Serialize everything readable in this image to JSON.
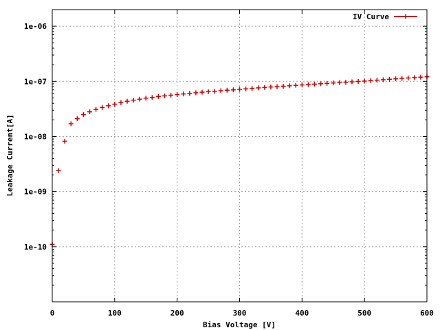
{
  "chart_data": {
    "type": "scatter",
    "xlabel": "Bias Voltage [V]",
    "ylabel": "Leakage Current[A]",
    "xlim": [
      0,
      600
    ],
    "ylim": [
      1e-11,
      2e-06
    ],
    "yscale": "log",
    "grid": true,
    "legend_position": "top-right",
    "x_ticks": [
      0,
      100,
      200,
      300,
      400,
      500,
      600
    ],
    "x_tick_labels": [
      "0",
      "100",
      "200",
      "300",
      "400",
      "500",
      "600"
    ],
    "y_ticks": [
      1e-10,
      1e-09,
      1e-08,
      1e-07,
      1e-06
    ],
    "y_tick_labels": [
      "1e-10",
      "1e-09",
      "1e-08",
      "1e-07",
      "1e-06"
    ],
    "series": [
      {
        "name": "IV Curve",
        "color": "#cc0000",
        "marker": "plus",
        "x": [
          0,
          10,
          20,
          30,
          40,
          50,
          60,
          70,
          80,
          90,
          100,
          110,
          120,
          130,
          140,
          150,
          160,
          170,
          180,
          190,
          200,
          210,
          220,
          230,
          240,
          250,
          260,
          270,
          280,
          290,
          300,
          310,
          320,
          330,
          340,
          350,
          360,
          370,
          380,
          390,
          400,
          410,
          420,
          430,
          440,
          450,
          460,
          470,
          480,
          490,
          500,
          510,
          520,
          530,
          540,
          550,
          560,
          570,
          580,
          590,
          600
        ],
        "y": [
          1.1e-10,
          2.4e-09,
          8.2e-09,
          1.7e-08,
          2.1e-08,
          2.5e-08,
          2.8e-08,
          3.1e-08,
          3.35e-08,
          3.6e-08,
          3.85e-08,
          4.1e-08,
          4.35e-08,
          4.55e-08,
          4.75e-08,
          4.95e-08,
          5.1e-08,
          5.3e-08,
          5.45e-08,
          5.6e-08,
          5.75e-08,
          5.9e-08,
          6.05e-08,
          6.2e-08,
          6.35e-08,
          6.5e-08,
          6.6e-08,
          6.75e-08,
          6.9e-08,
          7e-08,
          7.15e-08,
          7.3e-08,
          7.45e-08,
          7.6e-08,
          7.75e-08,
          7.9e-08,
          8e-08,
          8.15e-08,
          8.3e-08,
          8.45e-08,
          8.6e-08,
          8.75e-08,
          8.9e-08,
          9.05e-08,
          9.2e-08,
          9.35e-08,
          9.5e-08,
          9.65e-08,
          9.8e-08,
          9.95e-08,
          1.01e-07,
          1.03e-07,
          1.05e-07,
          1.07e-07,
          1.09e-07,
          1.11e-07,
          1.13e-07,
          1.15e-07,
          1.17e-07,
          1.19e-07,
          1.21e-07
        ]
      }
    ]
  }
}
